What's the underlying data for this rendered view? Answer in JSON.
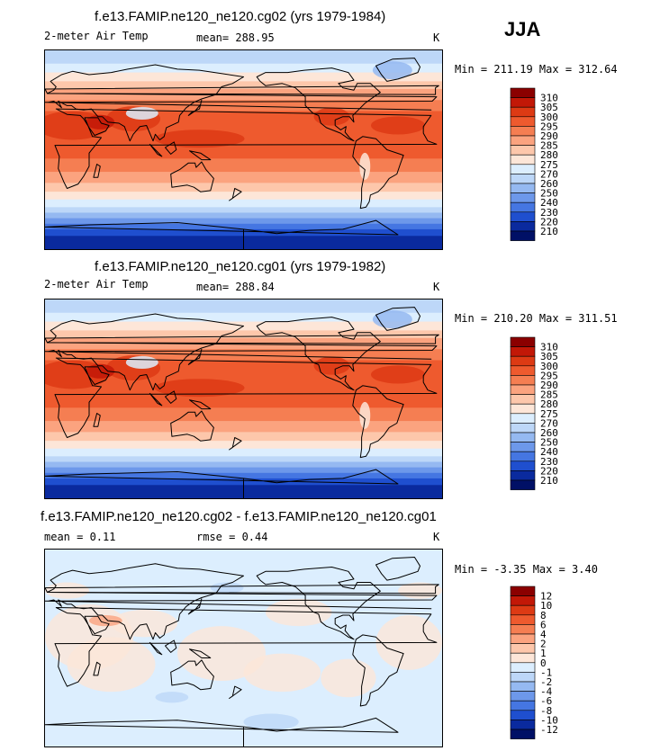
{
  "season": "JJA",
  "panels": [
    {
      "title": "f.e13.FAMIP.ne120_ne120.cg02 (yrs 1979-1984)",
      "variable": "2-meter Air Temp",
      "mean_text": "mean= 288.95",
      "rmse_text": "",
      "units": "K",
      "minmax_text": "Min = 211.19 Max = 312.64",
      "levels": [
        "310",
        "305",
        "300",
        "295",
        "290",
        "285",
        "280",
        "275",
        "270",
        "260",
        "250",
        "240",
        "230",
        "220",
        "210"
      ],
      "kind": "abs"
    },
    {
      "title": "f.e13.FAMIP.ne120_ne120.cg01 (yrs 1979-1982)",
      "variable": "2-meter Air Temp",
      "mean_text": "mean= 288.84",
      "rmse_text": "",
      "units": "K",
      "minmax_text": "Min = 210.20 Max = 311.51",
      "levels": [
        "310",
        "305",
        "300",
        "295",
        "290",
        "285",
        "280",
        "275",
        "270",
        "260",
        "250",
        "240",
        "230",
        "220",
        "210"
      ],
      "kind": "abs"
    },
    {
      "title": "f.e13.FAMIP.ne120_ne120.cg02 - f.e13.FAMIP.ne120_ne120.cg01",
      "variable": "mean =   0.11",
      "mean_text": "",
      "rmse_text": "rmse =   0.44",
      "units": "K",
      "minmax_text": "Min =  -3.35 Max =   3.40",
      "levels": [
        "12",
        "10",
        "8",
        "6",
        "4",
        "2",
        "1",
        "0",
        "-1",
        "-2",
        "-4",
        "-6",
        "-8",
        "-10",
        "-12"
      ],
      "kind": "diff"
    }
  ],
  "colors": {
    "scale": [
      "#8b0000",
      "#c21807",
      "#dd3a14",
      "#ee5a2e",
      "#f57e52",
      "#fba37f",
      "#fdc7ab",
      "#fde6d8",
      "#dceefe",
      "#bdd7f8",
      "#95b9f1",
      "#6d98ea",
      "#4576e2",
      "#1f4fcf",
      "#0a2a9e",
      "#001066"
    ]
  },
  "chart_data": [
    {
      "type": "heatmap",
      "title": "f.e13.FAMIP.ne120_ne120.cg02 (yrs 1979-1984)",
      "variable": "2-meter Air Temp",
      "units": "K",
      "season": "JJA",
      "mean": 288.95,
      "min": 211.19,
      "max": 312.64,
      "contour_levels": [
        210,
        220,
        230,
        240,
        250,
        260,
        270,
        275,
        280,
        285,
        290,
        295,
        300,
        305,
        310
      ]
    },
    {
      "type": "heatmap",
      "title": "f.e13.FAMIP.ne120_ne120.cg01 (yrs 1979-1982)",
      "variable": "2-meter Air Temp",
      "units": "K",
      "season": "JJA",
      "mean": 288.84,
      "min": 210.2,
      "max": 311.51,
      "contour_levels": [
        210,
        220,
        230,
        240,
        250,
        260,
        270,
        275,
        280,
        285,
        290,
        295,
        300,
        305,
        310
      ]
    },
    {
      "type": "heatmap",
      "title": "f.e13.FAMIP.ne120_ne120.cg02 - f.e13.FAMIP.ne120_ne120.cg01",
      "units": "K",
      "season": "JJA",
      "mean": 0.11,
      "rmse": 0.44,
      "min": -3.35,
      "max": 3.4,
      "contour_levels": [
        -12,
        -10,
        -8,
        -6,
        -4,
        -2,
        -1,
        0,
        1,
        2,
        4,
        6,
        8,
        10,
        12
      ]
    }
  ]
}
